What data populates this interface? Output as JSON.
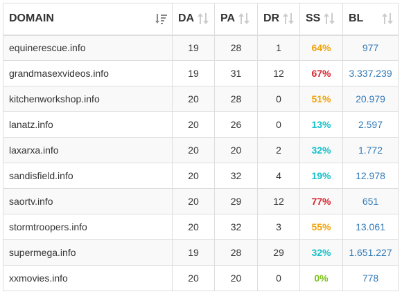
{
  "headers": {
    "domain": "DOMAIN",
    "da": "DA",
    "pa": "PA",
    "dr": "DR",
    "ss": "SS",
    "bl": "BL"
  },
  "icons": {
    "domain_sort": "sort-active-icon",
    "column_sort": "sort-inactive-icon"
  },
  "colors": {
    "ss_orange": "#f0a30a",
    "ss_red": "#d9232e",
    "ss_cyan": "#17c1c9",
    "ss_green": "#7dc21a",
    "bl_link": "#337ab7"
  },
  "rows": [
    {
      "domain": "equinerescue.info",
      "da": "19",
      "pa": "28",
      "dr": "1",
      "ss": "64%",
      "ss_color": "orange",
      "bl": "977"
    },
    {
      "domain": "grandmasexvideos.info",
      "da": "19",
      "pa": "31",
      "dr": "12",
      "ss": "67%",
      "ss_color": "red",
      "bl": "3.337.239"
    },
    {
      "domain": "kitchenworkshop.info",
      "da": "20",
      "pa": "28",
      "dr": "0",
      "ss": "51%",
      "ss_color": "orange",
      "bl": "20.979"
    },
    {
      "domain": "lanatz.info",
      "da": "20",
      "pa": "26",
      "dr": "0",
      "ss": "13%",
      "ss_color": "cyan",
      "bl": "2.597"
    },
    {
      "domain": "laxarxa.info",
      "da": "20",
      "pa": "20",
      "dr": "2",
      "ss": "32%",
      "ss_color": "cyan",
      "bl": "1.772"
    },
    {
      "domain": "sandisfield.info",
      "da": "20",
      "pa": "32",
      "dr": "4",
      "ss": "19%",
      "ss_color": "cyan",
      "bl": "12.978"
    },
    {
      "domain": "saortv.info",
      "da": "20",
      "pa": "29",
      "dr": "12",
      "ss": "77%",
      "ss_color": "red",
      "bl": "651"
    },
    {
      "domain": "stormtroopers.info",
      "da": "20",
      "pa": "32",
      "dr": "3",
      "ss": "55%",
      "ss_color": "orange",
      "bl": "13.061"
    },
    {
      "domain": "supermega.info",
      "da": "19",
      "pa": "28",
      "dr": "29",
      "ss": "32%",
      "ss_color": "cyan",
      "bl": "1.651.227"
    },
    {
      "domain": "xxmovies.info",
      "da": "20",
      "pa": "20",
      "dr": "0",
      "ss": "0%",
      "ss_color": "green",
      "bl": "778"
    }
  ]
}
